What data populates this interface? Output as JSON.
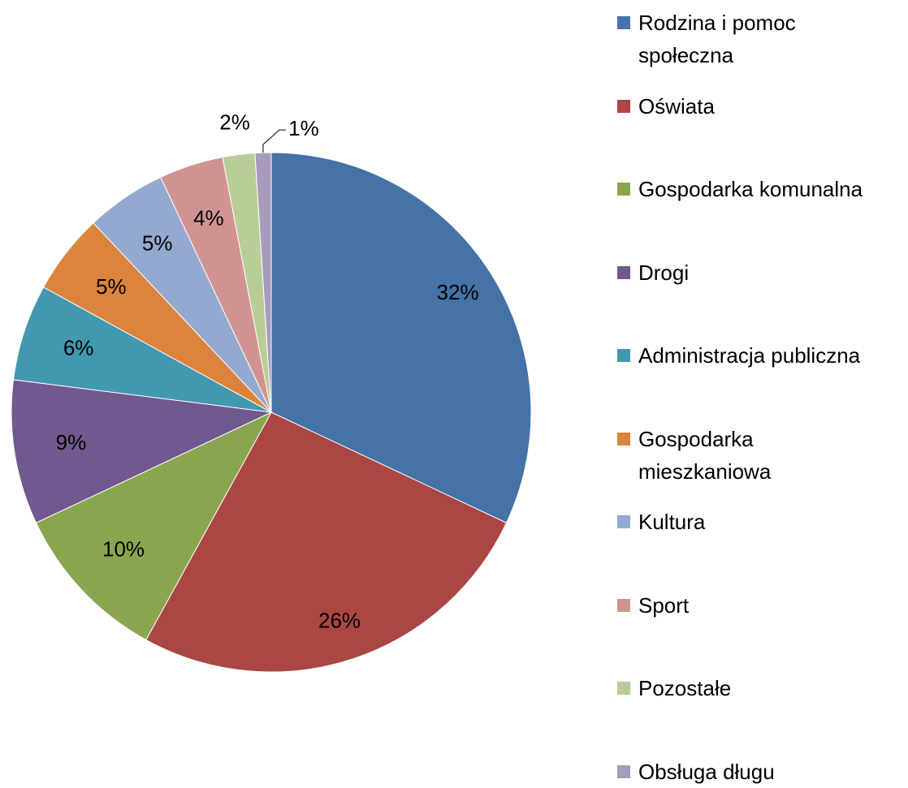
{
  "chart_data": {
    "type": "pie",
    "categories": [
      "Rodzina i pomoc społeczna",
      "Oświata",
      "Gospodarka komunalna",
      "Drogi",
      "Administracja publiczna",
      "Gospodarka mieszkaniowa",
      "Kultura",
      "Sport",
      "Pozostałe",
      "Obsługa długu"
    ],
    "values": [
      32,
      26,
      10,
      9,
      6,
      5,
      5,
      4,
      2,
      1
    ],
    "value_labels": [
      "32%",
      "26%",
      "10%",
      "9%",
      "6%",
      "5%",
      "5%",
      "4%",
      "2%",
      "1%"
    ],
    "colors": [
      "#4572a7",
      "#aa4643",
      "#89a54e",
      "#71588f",
      "#4198af",
      "#db843d",
      "#93a9cf",
      "#d19392",
      "#b9cd96",
      "#a99bbd"
    ],
    "legend": "right"
  }
}
